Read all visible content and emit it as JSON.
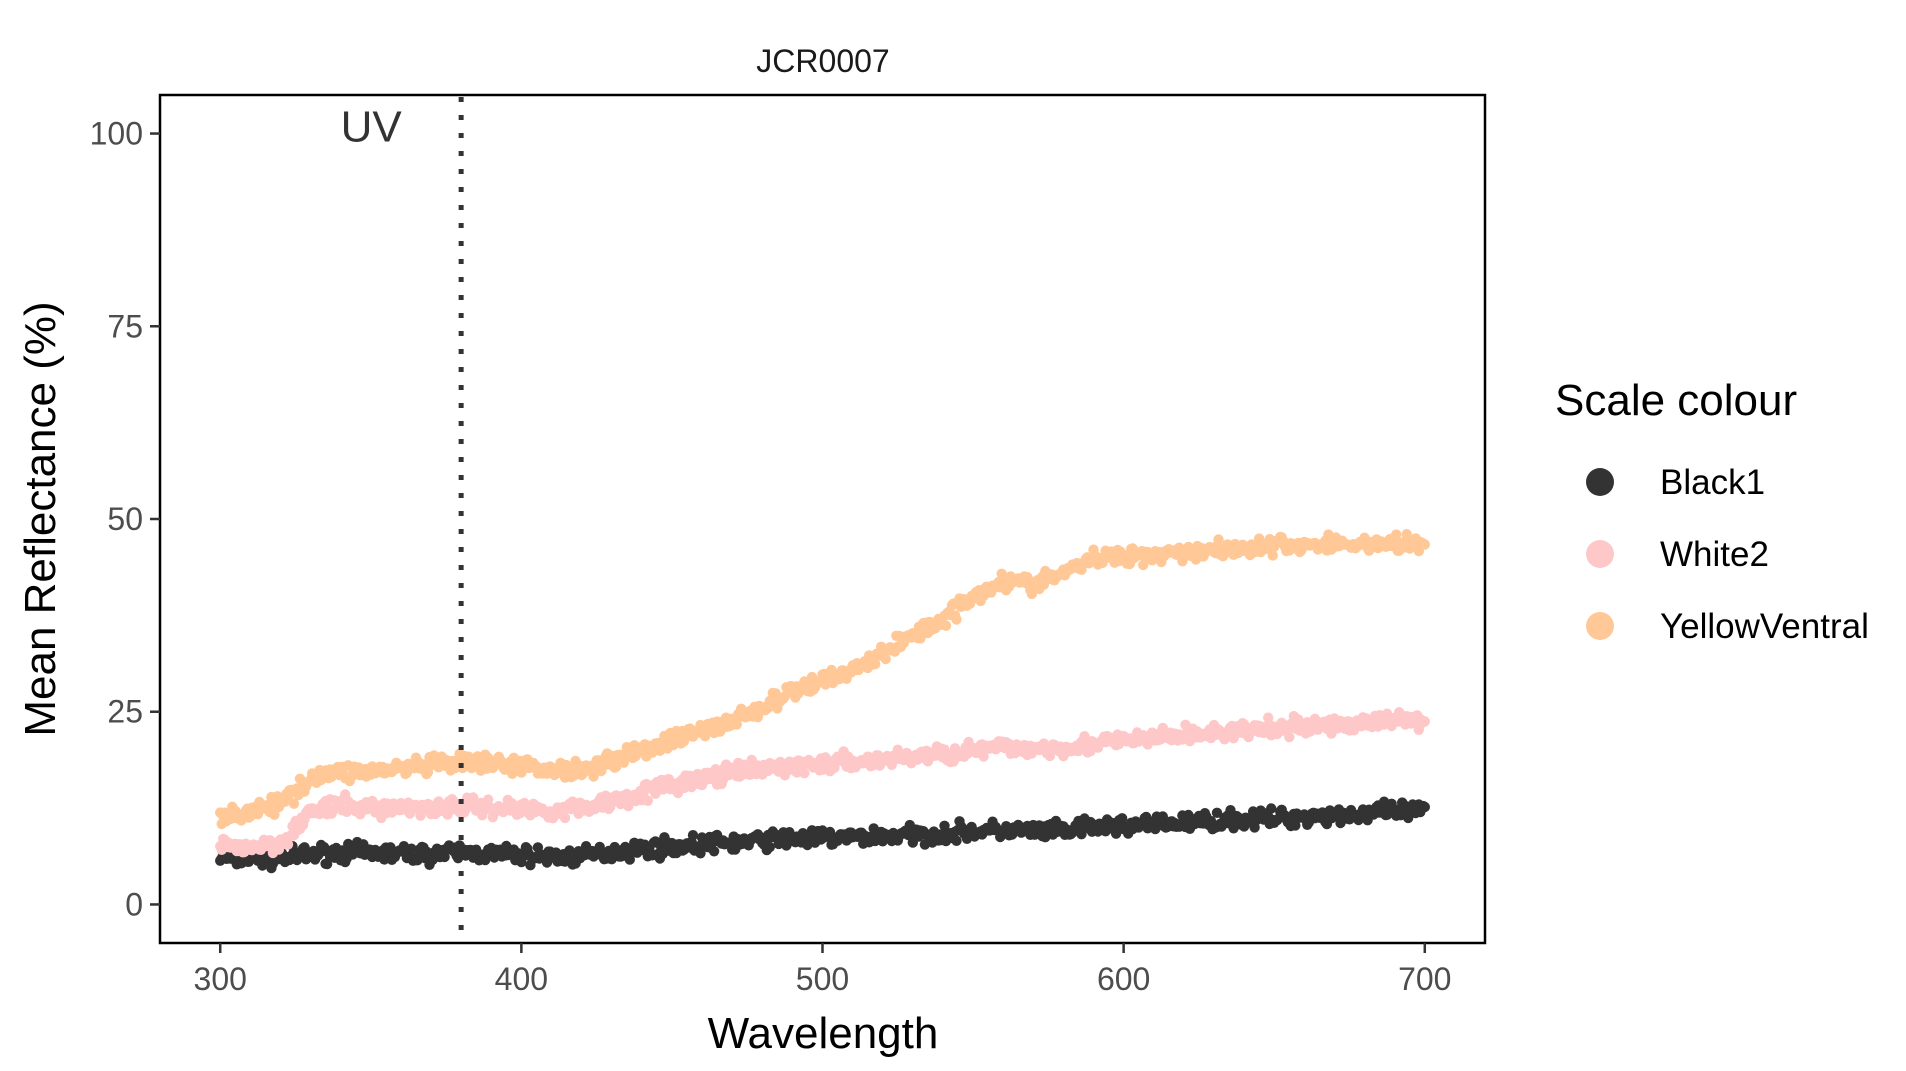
{
  "chart_data": {
    "type": "scatter",
    "title": "JCR0007",
    "xlabel": "Wavelength",
    "ylabel": "Mean Reflectance (%)",
    "xlim": [
      280,
      720
    ],
    "ylim": [
      -5,
      105
    ],
    "x_ticks": [
      "300",
      "400",
      "500",
      "600",
      "700"
    ],
    "y_ticks": [
      "0",
      "25",
      "50",
      "75",
      "100"
    ],
    "grid": false,
    "legend_title": "Scale colour",
    "legend_position": "right",
    "reference_line": {
      "x": 380,
      "style": "dotted",
      "label": "UV"
    },
    "x_range": [
      300,
      700
    ],
    "series": [
      {
        "name": "Black1",
        "color": "#333333",
        "x": [
          300,
          310,
          320,
          330,
          340,
          350,
          360,
          370,
          380,
          390,
          400,
          410,
          420,
          430,
          440,
          450,
          460,
          470,
          480,
          490,
          500,
          510,
          520,
          530,
          540,
          550,
          560,
          570,
          580,
          590,
          600,
          610,
          620,
          630,
          640,
          650,
          660,
          670,
          680,
          690,
          700
        ],
        "values": [
          6,
          6,
          6,
          6.5,
          6.8,
          6.7,
          6.6,
          6.5,
          6.8,
          6.5,
          6.4,
          6.2,
          6.2,
          6.8,
          7.2,
          7.5,
          7.8,
          8,
          8.3,
          8.6,
          8.6,
          8.7,
          8.9,
          9,
          9.2,
          9.5,
          9.6,
          9.5,
          9.5,
          10,
          10.2,
          10.4,
          10.6,
          10.9,
          11,
          11.2,
          11.4,
          11.6,
          11.8,
          12,
          12.2
        ]
      },
      {
        "name": "White2",
        "color": "#ffc8c8",
        "x": [
          300,
          310,
          320,
          330,
          340,
          350,
          360,
          370,
          380,
          390,
          400,
          410,
          420,
          430,
          440,
          450,
          460,
          470,
          480,
          490,
          500,
          510,
          520,
          530,
          540,
          550,
          560,
          570,
          580,
          590,
          600,
          610,
          620,
          630,
          640,
          650,
          660,
          670,
          680,
          690,
          700
        ],
        "values": [
          7.5,
          7.5,
          8,
          12,
          12.8,
          12.5,
          12.5,
          12.6,
          12.8,
          12.6,
          12.4,
          12.2,
          12.5,
          13.5,
          14.5,
          15.5,
          16.3,
          17,
          17.5,
          17.9,
          18.2,
          18.5,
          18.8,
          19.2,
          19.5,
          20,
          20.3,
          20.3,
          20.4,
          20.8,
          21.2,
          21.6,
          22,
          22.2,
          22.5,
          22.8,
          23,
          23.3,
          23.6,
          23.9,
          24.1
        ]
      },
      {
        "name": "YellowVentral",
        "color": "#ffc896",
        "x": [
          300,
          310,
          320,
          330,
          340,
          350,
          360,
          370,
          380,
          390,
          400,
          410,
          420,
          430,
          440,
          450,
          460,
          470,
          480,
          490,
          500,
          510,
          520,
          530,
          540,
          550,
          560,
          570,
          580,
          590,
          600,
          610,
          620,
          630,
          640,
          650,
          660,
          670,
          680,
          690,
          700
        ],
        "values": [
          11.5,
          12,
          13,
          16.5,
          17.2,
          17.3,
          17.6,
          18,
          18.3,
          18.2,
          18,
          17.5,
          17.5,
          18.8,
          20,
          21.3,
          22.5,
          23.8,
          25.5,
          27.5,
          29,
          30.5,
          32.5,
          35,
          37,
          40,
          42,
          41.5,
          43,
          44.8,
          45.2,
          45.5,
          45.8,
          46,
          46.3,
          46.5,
          46.6,
          46.7,
          46.8,
          46.8,
          46.8
        ]
      }
    ]
  }
}
